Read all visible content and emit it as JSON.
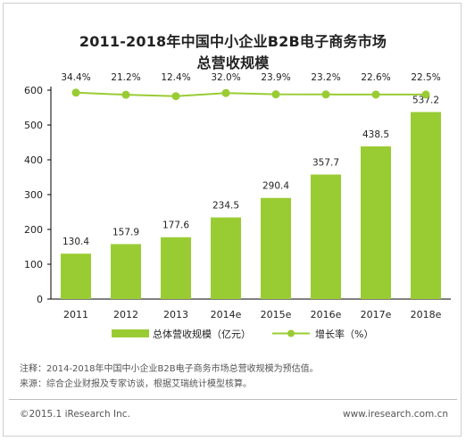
{
  "chart_data": {
    "type": "bar+line",
    "title": "2011-2018年中国中小企业B2B电子商务市场",
    "subtitle": "总营收规模",
    "categories": [
      "2011",
      "2012",
      "2013",
      "2014e",
      "2015e",
      "2016e",
      "2017e",
      "2018e"
    ],
    "series": [
      {
        "name": "总体营收规模（亿元）",
        "type": "bar",
        "values": [
          130.4,
          157.9,
          177.6,
          234.5,
          290.4,
          357.7,
          438.5,
          537.2
        ],
        "color": "#99cc33"
      },
      {
        "name": "增长率（%）",
        "type": "line",
        "values": [
          34.4,
          21.2,
          12.4,
          32.0,
          23.9,
          23.2,
          22.6,
          22.5
        ],
        "labels": [
          "34.4%",
          "21.2%",
          "12.4%",
          "32.0%",
          "23.9%",
          "23.2%",
          "22.6%",
          "22.5%"
        ],
        "color": "#99cc33"
      }
    ],
    "y_ticks": [
      "0",
      "100",
      "200",
      "300",
      "400",
      "500",
      "600"
    ],
    "ylim": [
      0,
      600
    ],
    "grid": false,
    "legend_position": "bottom"
  },
  "notes": [
    "注释：2014-2018年中国中小企业B2B电子商务市场总营收规模为预估值。",
    "来源：综合企业财报及专家访谈，根据艾瑞统计模型核算。"
  ],
  "footer": {
    "copyright": "©2015.1 iResearch Inc.",
    "website": "www.iresearch.com.cn"
  }
}
